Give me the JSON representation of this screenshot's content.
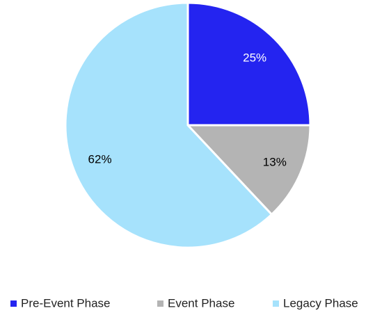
{
  "chart_data": {
    "type": "pie",
    "categories": [
      "Pre-Event Phase",
      "Event Phase",
      "Legacy Phase"
    ],
    "values": [
      25,
      13,
      62
    ],
    "value_labels": [
      "25%",
      "13%",
      "62%"
    ],
    "colors": [
      "#2424f0",
      "#b4b4b4",
      "#a6e2fc"
    ],
    "legend": "bottom"
  }
}
